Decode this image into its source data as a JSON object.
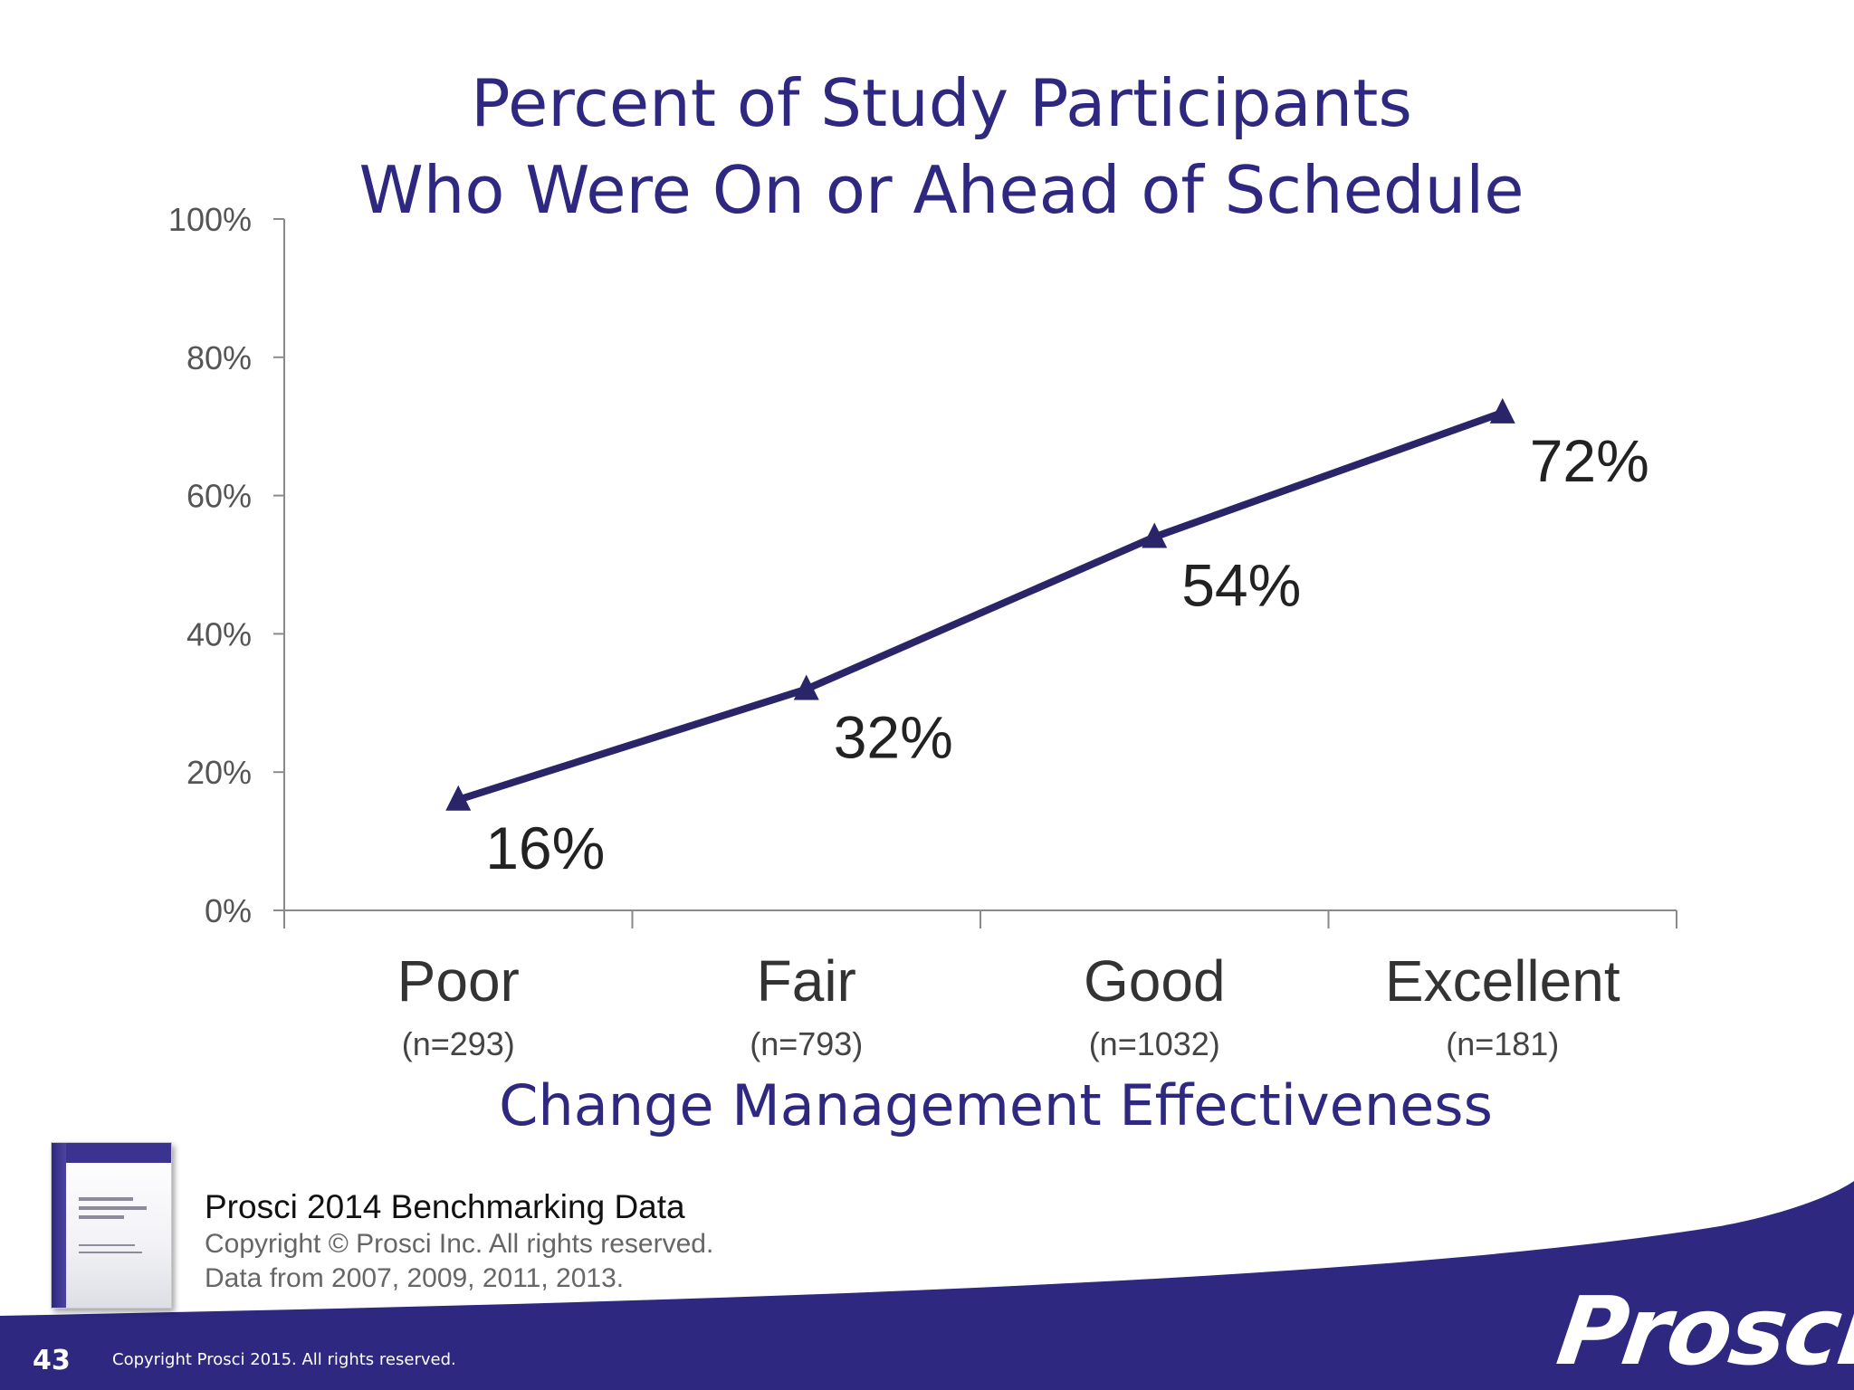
{
  "chart_data": {
    "type": "line",
    "title": [
      "Percent of Study Participants",
      "Who Were On or Ahead of Schedule"
    ],
    "xlabel": "Change Management Effectiveness",
    "ylabel": "",
    "categories": [
      "Poor",
      "Fair",
      "Good",
      "Excellent"
    ],
    "category_sublabels": [
      "(n=293)",
      "(n=793)",
      "(n=1032)",
      "(n=181)"
    ],
    "series": [
      {
        "name": "On or Ahead of Schedule",
        "values": [
          16,
          32,
          54,
          72
        ],
        "labels": [
          "16%",
          "32%",
          "54%",
          "72%"
        ]
      }
    ],
    "ylim": [
      0,
      100
    ],
    "yticks": [
      0,
      20,
      40,
      60,
      80,
      100
    ],
    "ytick_labels": [
      "0%",
      "20%",
      "40%",
      "60%",
      "80%",
      "100%"
    ],
    "marker": "triangle",
    "grid": false,
    "color": "#2a2468"
  },
  "source": {
    "heading": "Prosci 2014 Benchmarking Data",
    "copyright": "Copyright © Prosci Inc. All rights reserved.",
    "years": "Data from 2007, 2009, 2011, 2013."
  },
  "footer": {
    "page_number": "43",
    "copyright": "Copyright Prosci 2015. All rights reserved.",
    "logo": "Prosci",
    "logo_mark": "®"
  },
  "colors": {
    "title": "#2e2880",
    "band": "#2e2880",
    "series": "#2a2468"
  }
}
